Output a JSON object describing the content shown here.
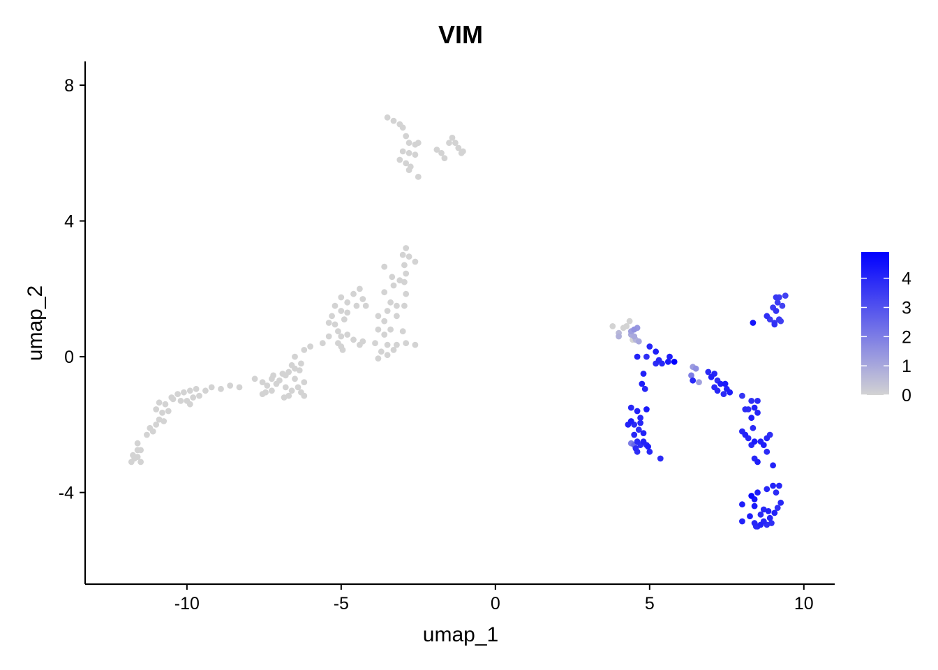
{
  "chart_data": {
    "type": "scatter",
    "title": "VIM",
    "xlabel": "umap_1",
    "ylabel": "umap_2",
    "xlim": [
      -13.3,
      11.0
    ],
    "ylim": [
      -6.7,
      8.7
    ],
    "x_ticks": [
      -10,
      -5,
      0,
      5,
      10
    ],
    "x_tick_labels": [
      "-10",
      "-5",
      "0",
      "5",
      "10"
    ],
    "y_ticks": [
      -4,
      0,
      4,
      8
    ],
    "y_tick_labels": [
      "-4",
      "0",
      "4",
      "8"
    ],
    "grid": false,
    "legend": {
      "position": "right",
      "type": "colorbar",
      "range": [
        0,
        4.9
      ],
      "ticks": [
        0,
        1,
        2,
        3,
        4
      ],
      "tick_labels": [
        "0",
        "1",
        "2",
        "3",
        "4"
      ],
      "low_color": "#D3D3D3",
      "high_color": "#0000FF"
    },
    "colors": {
      "low": "#D3D3D3",
      "high": "#0000FF"
    },
    "points": [
      [
        -3.5,
        7.05,
        0
      ],
      [
        -3.3,
        6.95,
        0
      ],
      [
        -3.1,
        6.85,
        0
      ],
      [
        -3.0,
        6.75,
        0
      ],
      [
        -2.9,
        6.5,
        0
      ],
      [
        -2.8,
        6.3,
        0
      ],
      [
        -2.5,
        6.3,
        0
      ],
      [
        -2.6,
        6.25,
        0
      ],
      [
        -3.0,
        6.05,
        0
      ],
      [
        -2.8,
        6.0,
        0
      ],
      [
        -2.6,
        5.95,
        0
      ],
      [
        -3.1,
        5.8,
        0
      ],
      [
        -2.9,
        5.7,
        0
      ],
      [
        -2.75,
        5.6,
        0
      ],
      [
        -2.8,
        5.5,
        0
      ],
      [
        -2.5,
        5.3,
        0
      ],
      [
        -1.5,
        6.3,
        0
      ],
      [
        -1.4,
        6.45,
        0
      ],
      [
        -1.3,
        6.3,
        0
      ],
      [
        -1.2,
        6.15,
        0
      ],
      [
        -1.05,
        6.05,
        0
      ],
      [
        -1.1,
        6.0,
        0
      ],
      [
        -1.9,
        6.1,
        0
      ],
      [
        -1.75,
        6.0,
        0
      ],
      [
        -1.65,
        5.85,
        0
      ],
      [
        -2.9,
        3.2,
        0
      ],
      [
        -3.0,
        3.0,
        0
      ],
      [
        -2.8,
        2.95,
        0
      ],
      [
        -2.6,
        2.8,
        0
      ],
      [
        -2.95,
        2.7,
        0
      ],
      [
        -3.6,
        2.65,
        0
      ],
      [
        -2.9,
        2.45,
        0
      ],
      [
        -3.35,
        2.35,
        0
      ],
      [
        -3.1,
        2.25,
        0
      ],
      [
        -2.95,
        2.2,
        0
      ],
      [
        -3.3,
        2.1,
        0
      ],
      [
        -3.6,
        1.9,
        0
      ],
      [
        -2.9,
        1.85,
        0
      ],
      [
        -3.4,
        1.6,
        0
      ],
      [
        -3.2,
        1.5,
        0
      ],
      [
        -2.95,
        1.5,
        0
      ],
      [
        -3.5,
        1.35,
        0
      ],
      [
        -3.2,
        1.2,
        0
      ],
      [
        -4.4,
        2.0,
        0
      ],
      [
        -4.6,
        1.85,
        0
      ],
      [
        -4.3,
        1.7,
        0
      ],
      [
        -5.0,
        1.75,
        0
      ],
      [
        -4.8,
        1.6,
        0
      ],
      [
        -4.5,
        1.5,
        0
      ],
      [
        -4.2,
        1.5,
        0
      ],
      [
        -5.2,
        1.5,
        0
      ],
      [
        -5.0,
        1.35,
        0
      ],
      [
        -4.8,
        1.3,
        0
      ],
      [
        -5.3,
        1.2,
        0
      ],
      [
        -4.9,
        1.1,
        0
      ],
      [
        -5.2,
        0.95,
        0
      ],
      [
        -5.4,
        1.0,
        0
      ],
      [
        -5.1,
        0.75,
        0
      ],
      [
        -3.8,
        1.2,
        0
      ],
      [
        -3.6,
        1.05,
        0
      ],
      [
        -3.8,
        0.8,
        0
      ],
      [
        -3.4,
        0.8,
        0
      ],
      [
        -3.6,
        0.65,
        0
      ],
      [
        -3.0,
        0.75,
        0
      ],
      [
        -3.9,
        0.4,
        0
      ],
      [
        -3.5,
        0.35,
        0
      ],
      [
        -3.2,
        0.35,
        0
      ],
      [
        -2.9,
        0.4,
        0
      ],
      [
        -2.6,
        0.35,
        0
      ],
      [
        -3.3,
        0.2,
        0
      ],
      [
        -3.7,
        0.15,
        0
      ],
      [
        -3.5,
        0.05,
        0
      ],
      [
        -3.8,
        -0.05,
        0
      ],
      [
        -4.3,
        0.45,
        0
      ],
      [
        -4.4,
        0.35,
        0
      ],
      [
        -4.8,
        0.65,
        0
      ],
      [
        -4.6,
        0.5,
        0
      ],
      [
        -5.0,
        0.6,
        0
      ],
      [
        -5.1,
        0.4,
        0
      ],
      [
        -5.4,
        0.6,
        0
      ],
      [
        -5.6,
        0.4,
        0
      ],
      [
        -5.0,
        0.3,
        0
      ],
      [
        -4.95,
        0.2,
        0
      ],
      [
        -6.0,
        0.3,
        0
      ],
      [
        -6.2,
        0.2,
        0
      ],
      [
        -6.5,
        0.0,
        0
      ],
      [
        -6.3,
        -0.2,
        0
      ],
      [
        -6.35,
        -0.4,
        0
      ],
      [
        -6.5,
        -0.35,
        0
      ],
      [
        -6.6,
        -0.25,
        0
      ],
      [
        -6.7,
        -0.45,
        0
      ],
      [
        -6.8,
        -0.55,
        0
      ],
      [
        -6.5,
        -0.65,
        0
      ],
      [
        -6.2,
        -0.75,
        0
      ],
      [
        -6.4,
        -0.9,
        0
      ],
      [
        -6.6,
        -1.0,
        0
      ],
      [
        -6.8,
        -0.9,
        0
      ],
      [
        -6.3,
        -1.05,
        0
      ],
      [
        -6.7,
        -1.15,
        0
      ],
      [
        -6.85,
        -1.2,
        0
      ],
      [
        -7.0,
        -0.7,
        0
      ],
      [
        -7.1,
        -0.8,
        0
      ],
      [
        -7.25,
        -0.65,
        0
      ],
      [
        -7.4,
        -0.85,
        0
      ],
      [
        -7.55,
        -0.75,
        0
      ],
      [
        -7.25,
        -1.0,
        0
      ],
      [
        -7.45,
        -1.05,
        0
      ],
      [
        -7.55,
        -1.1,
        0
      ],
      [
        -7.2,
        -0.55,
        0
      ],
      [
        -6.9,
        -0.5,
        0
      ],
      [
        -6.2,
        -1.15,
        0
      ],
      [
        -7.8,
        -0.65,
        0
      ],
      [
        -8.3,
        -0.9,
        0
      ],
      [
        -8.6,
        -0.85,
        0
      ],
      [
        -8.9,
        -0.95,
        0
      ],
      [
        -9.2,
        -0.9,
        0
      ],
      [
        -9.4,
        -1.0,
        0
      ],
      [
        -9.7,
        -0.95,
        0
      ],
      [
        -9.9,
        -1.0,
        0
      ],
      [
        -10.1,
        -1.05,
        0
      ],
      [
        -9.6,
        -1.15,
        0
      ],
      [
        -9.8,
        -1.2,
        0
      ],
      [
        -10.0,
        -1.3,
        0
      ],
      [
        -10.3,
        -1.1,
        0
      ],
      [
        -10.5,
        -1.2,
        0
      ],
      [
        -10.45,
        -1.25,
        0
      ],
      [
        -10.2,
        -1.3,
        0
      ],
      [
        -9.9,
        -1.4,
        0
      ],
      [
        -10.7,
        -1.4,
        0
      ],
      [
        -10.9,
        -1.35,
        0
      ],
      [
        -10.6,
        -1.6,
        0
      ],
      [
        -10.8,
        -1.65,
        0
      ],
      [
        -11.0,
        -1.55,
        0
      ],
      [
        -10.9,
        -1.85,
        0
      ],
      [
        -10.75,
        -1.9,
        0
      ],
      [
        -11.0,
        -2.0,
        0
      ],
      [
        -11.1,
        -2.2,
        0
      ],
      [
        -11.2,
        -2.1,
        0
      ],
      [
        -11.3,
        -2.3,
        0
      ],
      [
        -11.6,
        -2.55,
        0
      ],
      [
        -11.6,
        -2.75,
        0
      ],
      [
        -11.5,
        -2.75,
        0
      ],
      [
        -11.75,
        -2.9,
        0
      ],
      [
        -11.6,
        -2.95,
        0
      ],
      [
        -11.5,
        -3.1,
        0
      ],
      [
        -11.8,
        -3.1,
        0
      ],
      [
        -11.7,
        -3.0,
        0
      ],
      [
        3.8,
        0.9,
        0
      ],
      [
        4.0,
        0.7,
        0.6
      ],
      [
        4.0,
        0.6,
        0.8
      ],
      [
        4.15,
        0.85,
        0
      ],
      [
        4.25,
        0.9,
        0
      ],
      [
        4.35,
        1.05,
        0
      ],
      [
        4.4,
        0.75,
        1.2
      ],
      [
        4.5,
        0.8,
        1.5
      ],
      [
        4.6,
        0.85,
        1.4
      ],
      [
        4.4,
        0.65,
        0.9
      ],
      [
        4.5,
        0.6,
        1.0
      ],
      [
        4.45,
        0.5,
        0
      ],
      [
        4.55,
        0.5,
        0.7
      ],
      [
        4.65,
        0.45,
        1.0
      ],
      [
        5.0,
        0.3,
        4.0
      ],
      [
        5.2,
        0.15,
        4.2
      ],
      [
        4.6,
        0.0,
        4.1
      ],
      [
        4.9,
        0.0,
        3.8
      ],
      [
        5.3,
        -0.1,
        4.0
      ],
      [
        5.2,
        -0.2,
        3.9
      ],
      [
        5.65,
        0.0,
        4.2
      ],
      [
        5.8,
        -0.15,
        4.9
      ],
      [
        5.6,
        -0.15,
        4.3
      ],
      [
        5.4,
        -0.2,
        4.0
      ],
      [
        4.8,
        -0.5,
        4.1
      ],
      [
        4.75,
        -0.8,
        4.2
      ],
      [
        4.85,
        -0.95,
        4.0
      ],
      [
        6.4,
        -0.3,
        1.3
      ],
      [
        6.5,
        -0.35,
        1.6
      ],
      [
        6.35,
        -0.55,
        2.0
      ],
      [
        6.4,
        -0.7,
        4.0
      ],
      [
        6.6,
        -0.75,
        1.2
      ],
      [
        6.9,
        -0.45,
        3.9
      ],
      [
        7.1,
        -0.5,
        4.0
      ],
      [
        7.0,
        -0.6,
        4.1
      ],
      [
        7.2,
        -0.7,
        3.8
      ],
      [
        7.3,
        -0.8,
        4.2
      ],
      [
        7.1,
        -0.9,
        4.0
      ],
      [
        7.45,
        -0.8,
        4.3
      ],
      [
        7.5,
        -0.95,
        4.1
      ],
      [
        7.6,
        -1.05,
        4.2
      ],
      [
        7.4,
        -1.1,
        3.9
      ],
      [
        7.2,
        -1.0,
        4.0
      ],
      [
        8.0,
        -1.15,
        3.7
      ],
      [
        8.3,
        -1.3,
        3.8
      ],
      [
        8.5,
        -1.3,
        3.9
      ],
      [
        8.4,
        -1.5,
        4.1
      ],
      [
        8.5,
        -1.65,
        4.0
      ],
      [
        8.2,
        -1.55,
        3.8
      ],
      [
        8.3,
        -1.8,
        4.2
      ],
      [
        8.1,
        -1.55,
        3.9
      ],
      [
        8.0,
        -2.2,
        4.0
      ],
      [
        8.1,
        -2.3,
        4.1
      ],
      [
        8.35,
        -2.1,
        3.9
      ],
      [
        8.2,
        -2.4,
        4.0
      ],
      [
        8.4,
        -2.5,
        4.3
      ],
      [
        8.6,
        -2.5,
        4.1
      ],
      [
        8.8,
        -2.4,
        4.0
      ],
      [
        8.9,
        -2.3,
        3.8
      ],
      [
        8.7,
        -2.6,
        4.2
      ],
      [
        8.3,
        -2.6,
        4.0
      ],
      [
        8.5,
        -3.1,
        4.2
      ],
      [
        9.0,
        -3.2,
        4.1
      ],
      [
        8.8,
        -2.8,
        3.9
      ],
      [
        8.4,
        -3.0,
        4.0
      ],
      [
        4.4,
        -1.5,
        4.0
      ],
      [
        4.6,
        -1.6,
        4.1
      ],
      [
        4.9,
        -1.55,
        4.3
      ],
      [
        4.7,
        -1.8,
        4.0
      ],
      [
        4.4,
        -1.9,
        4.2
      ],
      [
        4.3,
        -2.0,
        4.1
      ],
      [
        4.5,
        -2.0,
        3.9
      ],
      [
        4.7,
        -1.95,
        4.0
      ],
      [
        4.65,
        -2.15,
        3.8
      ],
      [
        4.8,
        -2.25,
        4.1
      ],
      [
        4.5,
        -2.3,
        4.0
      ],
      [
        4.6,
        -2.5,
        3.9
      ],
      [
        4.4,
        -2.55,
        2.0
      ],
      [
        4.5,
        -2.6,
        2.5
      ],
      [
        4.8,
        -2.5,
        4.1
      ],
      [
        4.7,
        -2.6,
        3.8
      ],
      [
        4.9,
        -2.6,
        4.0
      ],
      [
        4.55,
        -2.7,
        3.9
      ],
      [
        4.6,
        -2.8,
        3.8
      ],
      [
        4.95,
        -2.65,
        4.2
      ],
      [
        5.0,
        -2.8,
        4.0
      ],
      [
        5.35,
        -3.0,
        3.9
      ],
      [
        8.3,
        -4.1,
        4.7
      ],
      [
        8.5,
        -4.0,
        4.2
      ],
      [
        8.8,
        -3.9,
        4.0
      ],
      [
        9.0,
        -3.8,
        4.1
      ],
      [
        9.2,
        -3.8,
        4.0
      ],
      [
        9.1,
        -4.0,
        3.9
      ],
      [
        9.25,
        -4.3,
        4.0
      ],
      [
        9.15,
        -4.45,
        3.8
      ],
      [
        9.05,
        -4.6,
        4.1
      ],
      [
        8.0,
        -4.35,
        4.2
      ],
      [
        8.4,
        -4.2,
        4.4
      ],
      [
        8.4,
        -4.4,
        4.3
      ],
      [
        8.7,
        -4.5,
        4.0
      ],
      [
        8.6,
        -4.65,
        3.9
      ],
      [
        8.85,
        -4.55,
        4.1
      ],
      [
        8.9,
        -4.75,
        4.0
      ],
      [
        8.95,
        -4.9,
        3.8
      ],
      [
        8.25,
        -4.7,
        4.2
      ],
      [
        8.4,
        -4.9,
        4.0
      ],
      [
        8.5,
        -5.0,
        3.9
      ],
      [
        8.6,
        -4.95,
        4.1
      ],
      [
        8.7,
        -4.85,
        4.0
      ],
      [
        8.8,
        -4.95,
        3.8
      ],
      [
        8.0,
        -4.85,
        4.1
      ],
      [
        8.45,
        -5.0,
        3.9
      ],
      [
        9.1,
        1.75,
        3.6
      ],
      [
        9.2,
        1.75,
        3.5
      ],
      [
        9.4,
        1.8,
        3.4
      ],
      [
        9.15,
        1.6,
        3.5
      ],
      [
        9.0,
        1.45,
        3.6
      ],
      [
        9.1,
        1.35,
        3.7
      ],
      [
        9.3,
        1.5,
        3.4
      ],
      [
        8.8,
        1.2,
        3.8
      ],
      [
        8.9,
        1.1,
        3.5
      ],
      [
        9.05,
        1.0,
        3.6
      ],
      [
        9.2,
        1.1,
        3.5
      ],
      [
        9.25,
        1.05,
        3.4
      ],
      [
        8.35,
        1.0,
        4.4
      ],
      [
        9.05,
        0.95,
        3.8
      ]
    ]
  }
}
